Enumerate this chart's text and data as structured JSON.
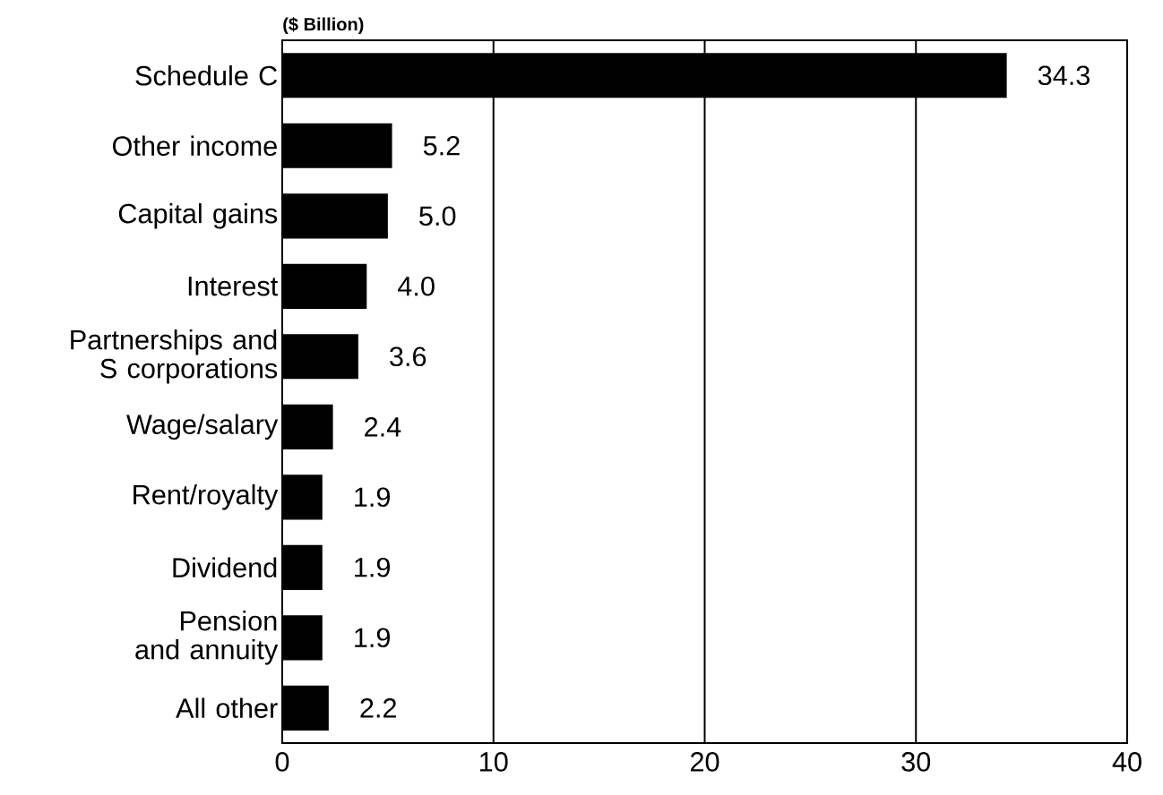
{
  "chart_data": {
    "type": "bar",
    "orientation": "horizontal",
    "xlabel": "($ Billion)",
    "categories": [
      "Schedule C",
      "Other income",
      "Capital gains",
      "Interest",
      "Partnerships and S corporations",
      "Wage/salary",
      "Rent/royalty",
      "Dividend",
      "Pension and annuity",
      "All other"
    ],
    "values": [
      34.3,
      5.2,
      5.0,
      4.0,
      3.6,
      2.4,
      1.9,
      1.9,
      1.9,
      2.2
    ],
    "value_labels": [
      "34.3",
      "5.2",
      "5.0",
      "4.0",
      "3.6",
      "2.4",
      "1.9",
      "1.9",
      "1.9",
      "2.2"
    ],
    "color": "#000000",
    "xlim": [
      0,
      40
    ],
    "xticks": [
      0,
      10,
      20,
      30,
      40
    ],
    "grid": "x"
  }
}
